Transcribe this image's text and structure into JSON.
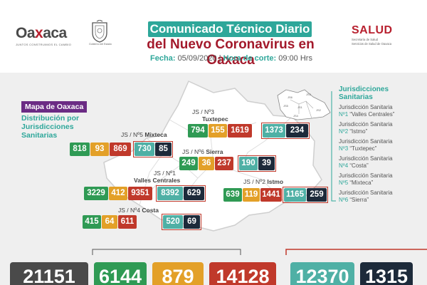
{
  "header": {
    "logo_main_a": "Oa",
    "logo_main_b": "x",
    "logo_main_c": "aca",
    "logo_tagline": "JUNTOS CONSTRUIMOS EL CAMBIO",
    "gov_label": "Gobierno del Estado",
    "title_line1": "Comunicado Técnico Diario",
    "title_line2": "del Nuevo Coronavirus en Oaxaca",
    "date_label": "Fecha:",
    "date_value": "05/09/2020",
    "separator": "|",
    "time_label": "Hora de corte:",
    "time_value": "09:00 Hrs",
    "salud_word": "SALUD",
    "salud_sub1": "Secretaría de Salud",
    "salud_sub2": "Servicios de Salud de Oaxaca"
  },
  "map": {
    "title": "Mapa de Oaxaca",
    "subtitle": "Distribución por Jurisdicciones Sanitarias",
    "region_labels": [
      "JS6",
      "JS3",
      "JS5",
      "JS1",
      "JS4",
      "JS2"
    ]
  },
  "legend": {
    "title": "Jurisdicciones Sanitarias",
    "items": [
      {
        "prefix": "Jurisdicción Sanitaria",
        "num": "Nº1",
        "name": "“Valles Centrales”"
      },
      {
        "prefix": "Jurisdicción Sanitaria",
        "num": "Nº2",
        "name": "“Istmo”"
      },
      {
        "prefix": "Jurisdicción Sanitaria",
        "num": "Nº3",
        "name": "“Tuxtepec”"
      },
      {
        "prefix": "Jurisdicción Sanitaria",
        "num": "Nº4",
        "name": "“Costa”"
      },
      {
        "prefix": "Jurisdicción Sanitaria",
        "num": "Nº5",
        "name": "“Mixteca”"
      },
      {
        "prefix": "Jurisdicción Sanitaria",
        "num": "Nº6",
        "name": "“Sierra”"
      }
    ]
  },
  "jurisdictions": {
    "tuxtepec": {
      "label_a": "JS / Nº3",
      "label_b": "Tuxtepec",
      "v": [
        "794",
        "155",
        "1619",
        "1373",
        "234"
      ]
    },
    "mixteca": {
      "label_a": "JS / Nº5",
      "label_b": "Mixteca",
      "v": [
        "818",
        "93",
        "869",
        "730",
        "85"
      ]
    },
    "sierra": {
      "label_a": "JS / Nº6",
      "label_b": "Sierra",
      "v": [
        "249",
        "36",
        "237",
        "190",
        "39"
      ]
    },
    "valles": {
      "label_a": "JS / Nº1",
      "label_b": "Valles Centrales",
      "v": [
        "3229",
        "412",
        "9351",
        "8392",
        "629"
      ]
    },
    "istmo": {
      "label_a": "JS / Nº2",
      "label_b": "Istmo",
      "v": [
        "639",
        "119",
        "1441",
        "1165",
        "259"
      ]
    },
    "costa": {
      "label_a": "JS / Nº4",
      "label_b": "Costa",
      "v": [
        "415",
        "64",
        "611",
        "520",
        "69"
      ]
    }
  },
  "totals": [
    "21151",
    "6144",
    "879",
    "14128",
    "12370",
    "1315"
  ],
  "colors": {
    "teal": "#2ea79a",
    "green": "#2f9a54",
    "orange": "#e3a028",
    "red": "#c0392b",
    "light_teal": "#4fb0a5",
    "navy": "#1d2a3a",
    "purple": "#6b2b84",
    "maroon": "#a3192b"
  }
}
